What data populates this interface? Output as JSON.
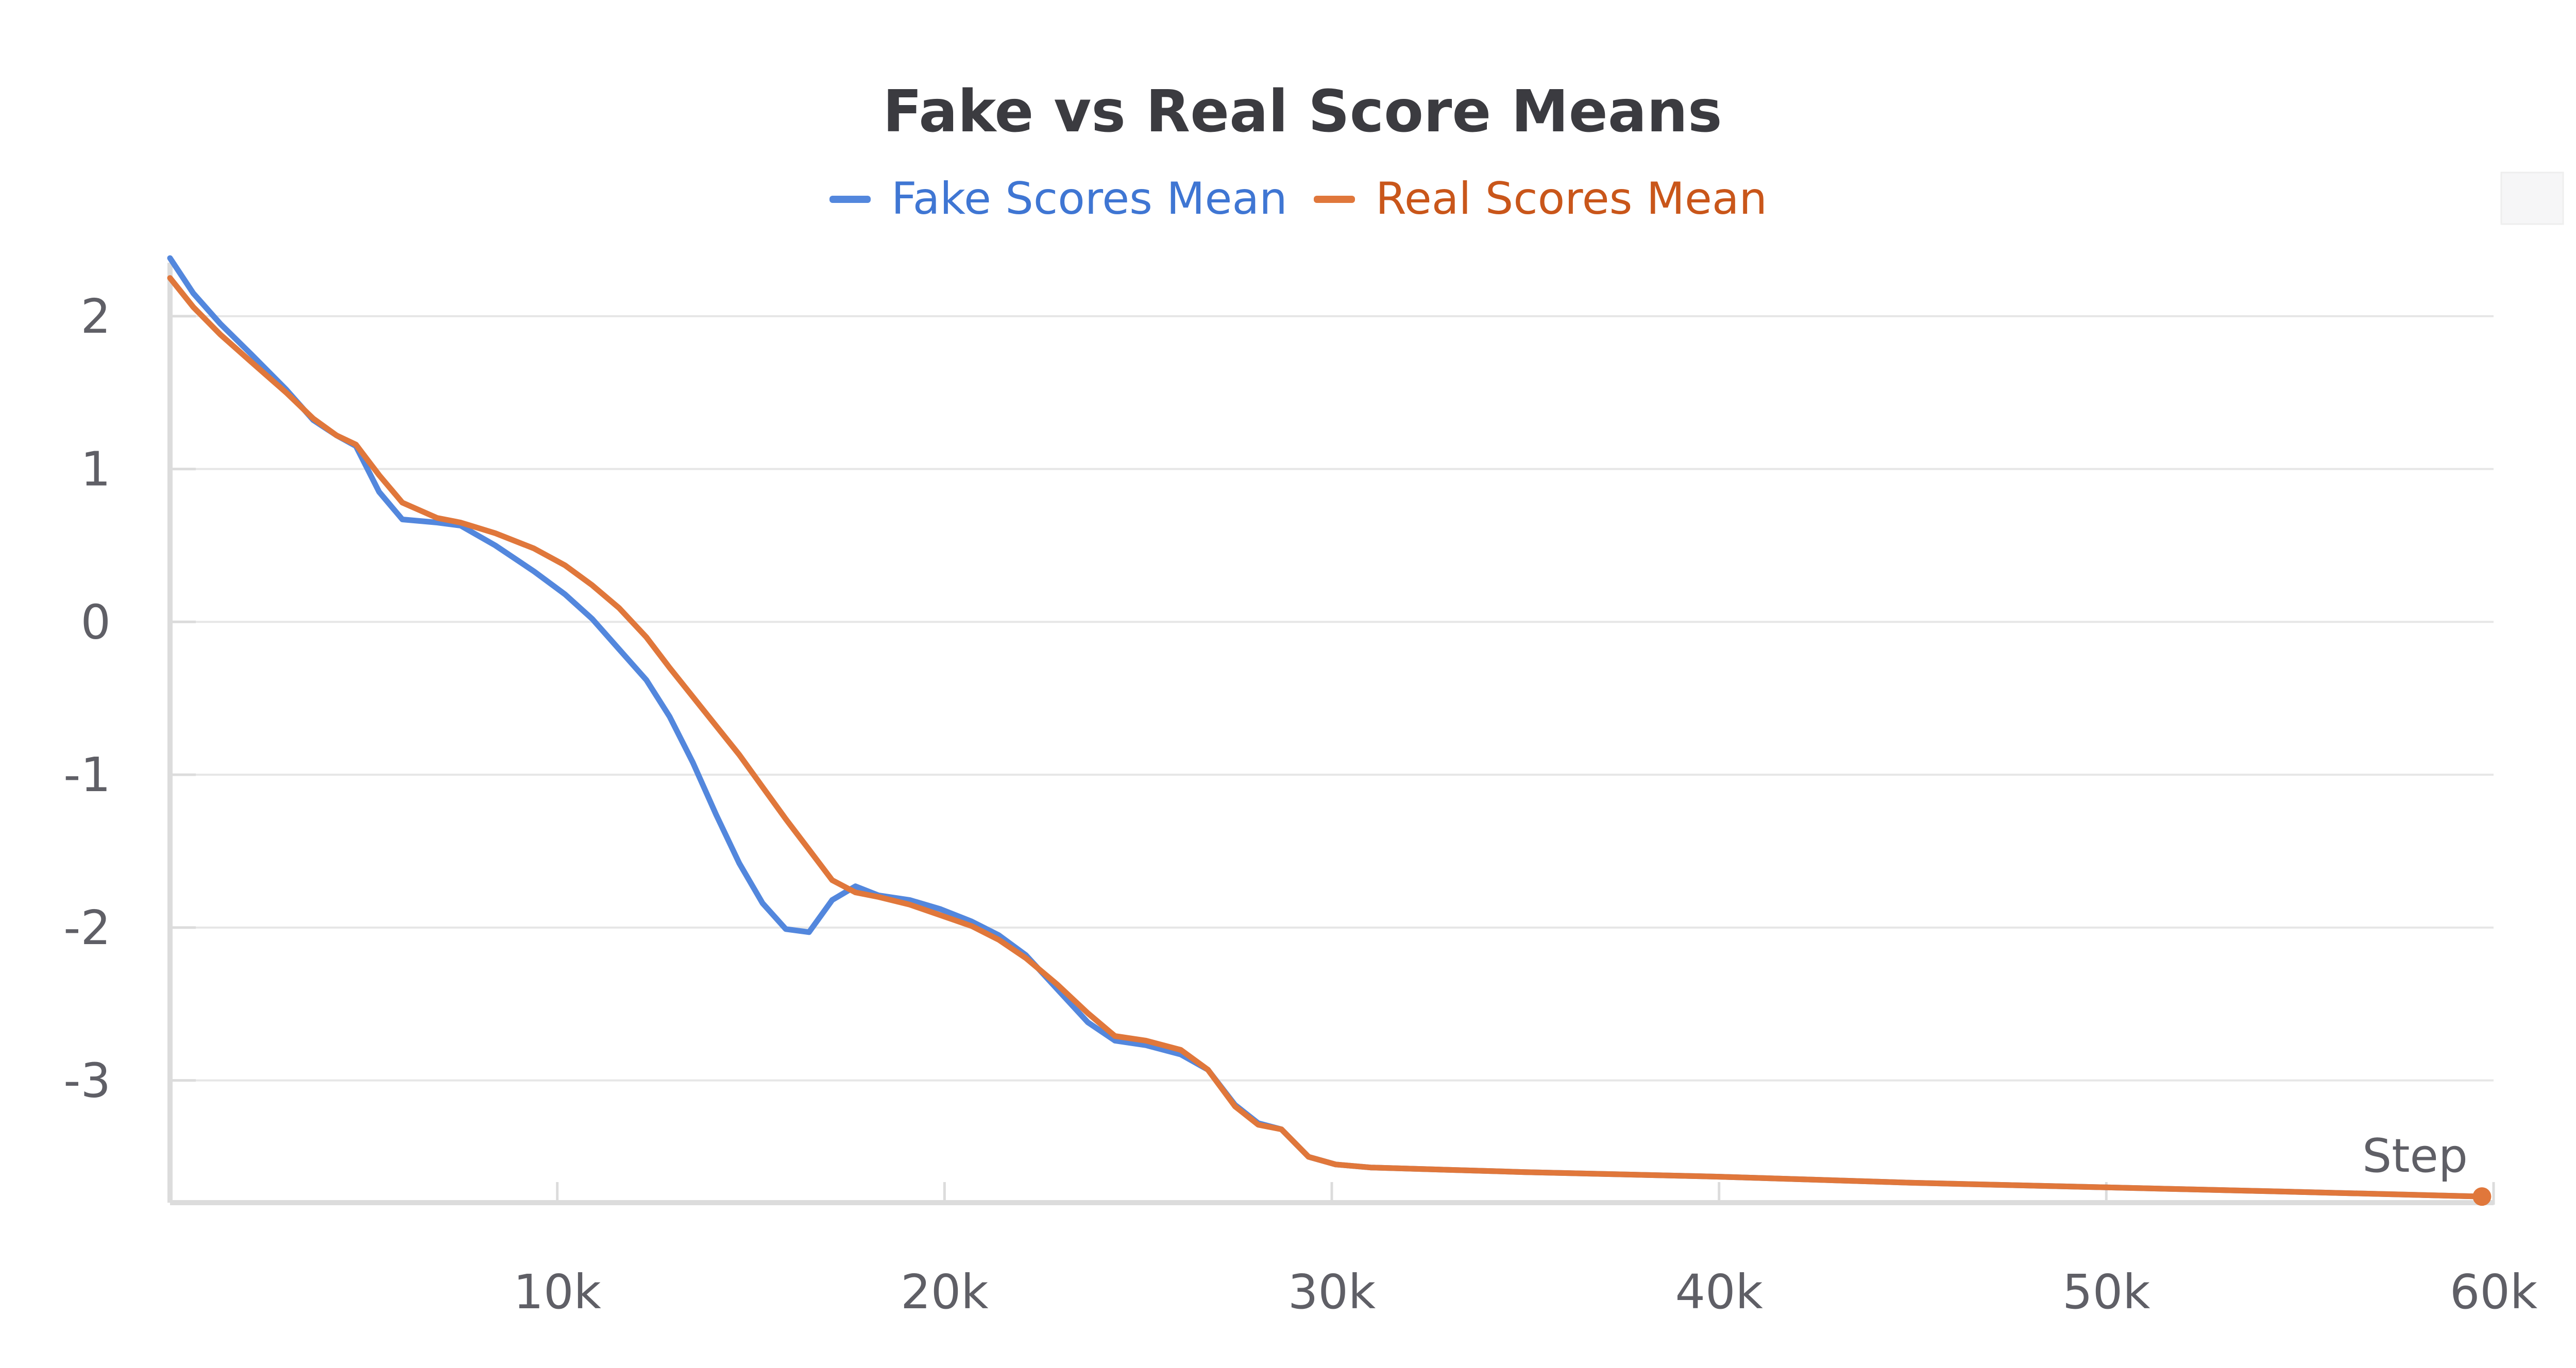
{
  "chart_data": {
    "type": "line",
    "title": "Fake vs Real Score Means",
    "xlabel": "Step",
    "ylabel": "",
    "xlim": [
      0,
      60000
    ],
    "ylim": [
      -3.8,
      2.35
    ],
    "grid": true,
    "legend_position": "top-center",
    "x_ticks": [
      10000,
      20000,
      30000,
      40000,
      50000,
      60000
    ],
    "x_tick_labels": [
      "10k",
      "20k",
      "30k",
      "40k",
      "50k",
      "60k"
    ],
    "y_ticks": [
      2,
      1,
      0,
      -1,
      -2,
      -3
    ],
    "y_tick_labels": [
      "2",
      "1",
      "0",
      "-1",
      "-2",
      "-3"
    ],
    "series": [
      {
        "name": "Fake Scores Mean",
        "color": "#5387dd",
        "x": [
          0,
          600,
          1300,
          2100,
          3000,
          3700,
          4300,
          4800,
          5400,
          6000,
          6900,
          7500,
          8400,
          9400,
          10200,
          10900,
          11600,
          12300,
          12900,
          13500,
          14100,
          14700,
          15300,
          15900,
          16500,
          17100,
          17700,
          18300,
          19100,
          19900,
          20700,
          21400,
          22100,
          22900,
          23700,
          24400,
          25200,
          26100,
          26800,
          27500,
          28100,
          28700,
          29400,
          30100,
          31000,
          35000,
          40000,
          45000,
          50000,
          55000,
          59700
        ],
        "y": [
          2.38,
          2.15,
          1.95,
          1.75,
          1.52,
          1.32,
          1.22,
          1.15,
          0.85,
          0.67,
          0.65,
          0.63,
          0.5,
          0.33,
          0.18,
          0.02,
          -0.18,
          -0.38,
          -0.62,
          -0.92,
          -1.26,
          -1.58,
          -1.84,
          -2.01,
          -2.03,
          -1.82,
          -1.73,
          -1.79,
          -1.82,
          -1.88,
          -1.96,
          -2.05,
          -2.18,
          -2.4,
          -2.62,
          -2.74,
          -2.77,
          -2.83,
          -2.93,
          -3.16,
          -3.28,
          -3.32,
          -3.5,
          -3.55,
          -3.57,
          -3.6,
          -3.63,
          -3.67,
          -3.7,
          -3.73,
          -3.76
        ]
      },
      {
        "name": "Real Scores Mean",
        "color": "#e0773b",
        "x": [
          0,
          600,
          1300,
          2100,
          3000,
          3700,
          4300,
          4800,
          5400,
          6000,
          6900,
          7500,
          8400,
          9400,
          10200,
          10900,
          11600,
          12300,
          12900,
          13500,
          14100,
          14700,
          15300,
          15900,
          16500,
          17100,
          17700,
          18300,
          19100,
          19900,
          20700,
          21400,
          22100,
          22900,
          23700,
          24400,
          25200,
          26100,
          26800,
          27500,
          28100,
          28700,
          29400,
          30100,
          31000,
          35000,
          40000,
          45000,
          50000,
          55000,
          59700
        ],
        "y": [
          2.25,
          2.06,
          1.88,
          1.7,
          1.5,
          1.33,
          1.22,
          1.16,
          0.96,
          0.78,
          0.68,
          0.65,
          0.58,
          0.48,
          0.37,
          0.24,
          0.09,
          -0.1,
          -0.3,
          -0.49,
          -0.68,
          -0.87,
          -1.08,
          -1.29,
          -1.49,
          -1.69,
          -1.77,
          -1.8,
          -1.85,
          -1.92,
          -1.99,
          -2.08,
          -2.2,
          -2.37,
          -2.56,
          -2.71,
          -2.74,
          -2.8,
          -2.93,
          -3.17,
          -3.29,
          -3.32,
          -3.5,
          -3.55,
          -3.57,
          -3.6,
          -3.63,
          -3.67,
          -3.7,
          -3.73,
          -3.76
        ]
      }
    ]
  },
  "ui": {
    "corner_button_icon": "blank-square-icon",
    "end_marker_color": "#e0773b",
    "axis_color": "#dcdcdc"
  }
}
